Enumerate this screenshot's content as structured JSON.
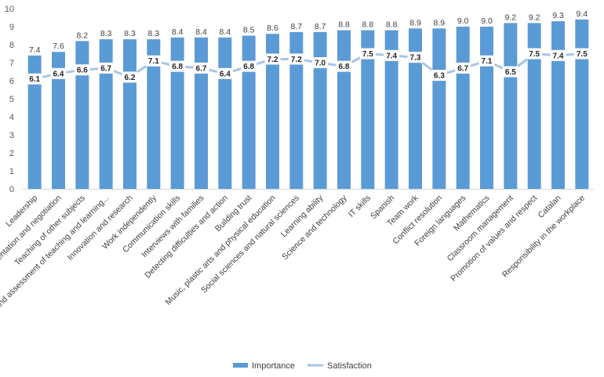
{
  "chart_data": {
    "type": "bar",
    "title": "",
    "xlabel": "",
    "ylabel": "",
    "ylim": [
      0,
      10
    ],
    "yticks": [
      0,
      1,
      2,
      3,
      4,
      5,
      6,
      7,
      8,
      9,
      10
    ],
    "grid": false,
    "legend_position": "bottom",
    "categories": [
      "Leadership",
      "Argumentation and negotiation",
      "Teaching of other subjects",
      "Design and assessment of teaching and learning...",
      "Innovation and research",
      "Work independently",
      "Communication skills",
      "Interviews with families",
      "Detecting difficulties and action",
      "Building trust",
      "Music, plastic arts and physical education",
      "Social sciences and natural sciences",
      "Learning ability",
      "Science and technology",
      "IT skills",
      "Spanish",
      "Team work",
      "Conflict resolution",
      "Foreign languages",
      "Mathematics",
      "Classroom management",
      "Promotion of values and respect",
      "Catalan",
      "Responsibility in the workplace"
    ],
    "series": [
      {
        "name": "Importance",
        "kind": "bar",
        "color": "#5B9BD5",
        "values": [
          7.4,
          7.6,
          8.2,
          8.3,
          8.3,
          8.3,
          8.4,
          8.4,
          8.4,
          8.5,
          8.6,
          8.7,
          8.7,
          8.8,
          8.8,
          8.8,
          8.9,
          8.9,
          9.0,
          9.0,
          9.2,
          9.2,
          9.3,
          9.4
        ],
        "labels": [
          "7.4",
          "7.6",
          "8.2",
          "8.3",
          "8.3",
          "8.3",
          "8.4",
          "8.4",
          "8.4",
          "8.5",
          "8.6",
          "8.7",
          "8.7",
          "8.8",
          "8.8",
          "8.8",
          "8.9",
          "8.9",
          "9.0",
          "9.0",
          "9.2",
          "9.2",
          "9.3",
          "9.4"
        ]
      },
      {
        "name": "Satisfaction",
        "kind": "line",
        "color": "#A9C4E6",
        "values": [
          6.1,
          6.4,
          6.6,
          6.7,
          6.2,
          7.1,
          6.8,
          6.7,
          6.4,
          6.8,
          7.2,
          7.2,
          7.0,
          6.8,
          7.5,
          7.4,
          7.3,
          6.3,
          6.7,
          7.1,
          6.5,
          7.5,
          7.4,
          7.5
        ],
        "labels": [
          "6.1",
          "6.4",
          "6.6",
          "6.7",
          "6.2",
          "7.1",
          "6.8",
          "6.7",
          "6.4",
          "6.8",
          "7.2",
          "7.2",
          "7.0",
          "6.8",
          "7.5",
          "7.4",
          "7.3",
          "6.3",
          "6.7",
          "7.1",
          "6.5",
          "7.5",
          "7.4",
          "7.5"
        ]
      }
    ]
  }
}
